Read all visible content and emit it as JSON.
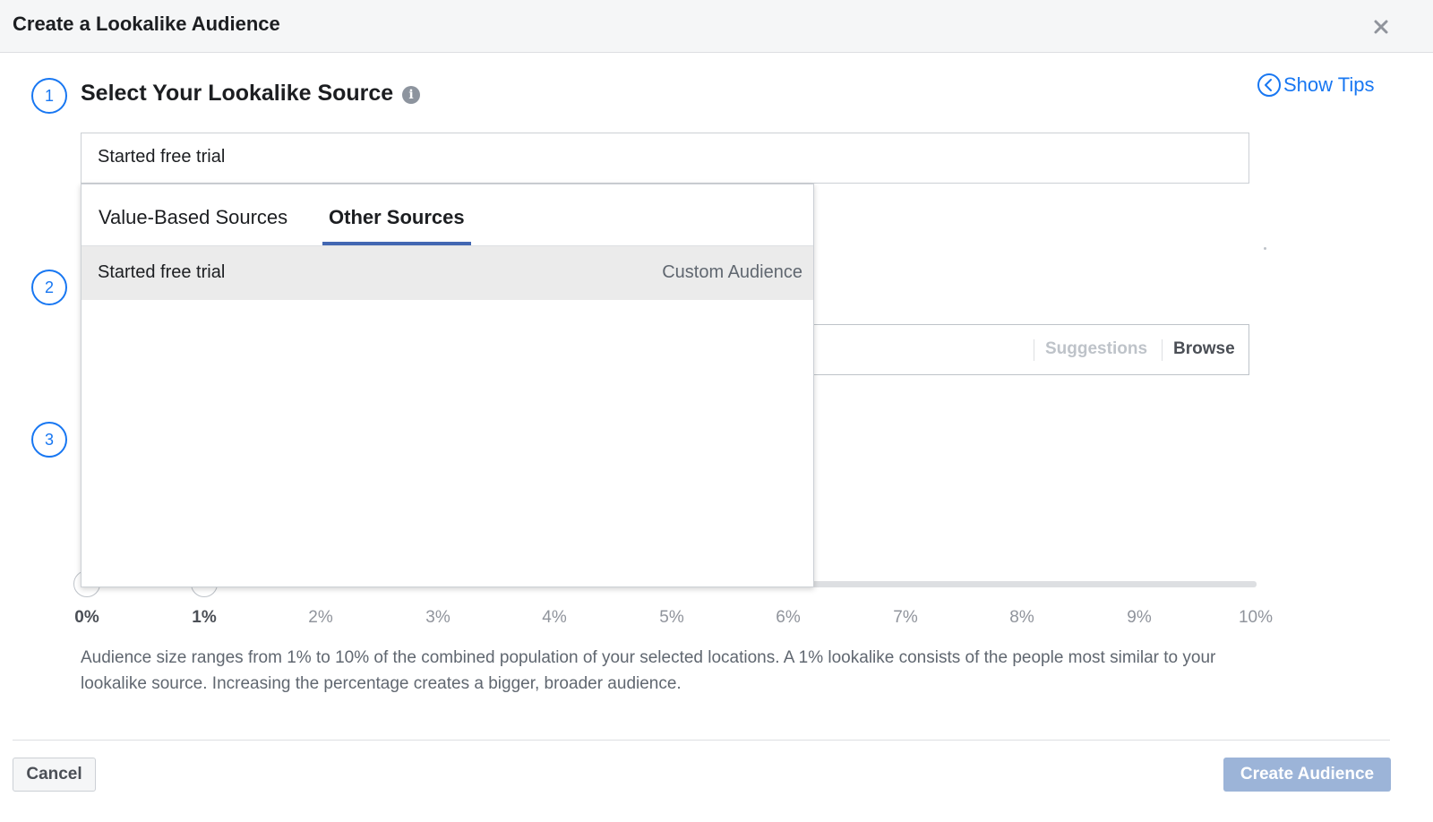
{
  "dialog": {
    "title": "Create a Lookalike Audience"
  },
  "steps": [
    "1",
    "2",
    "3"
  ],
  "source_section": {
    "title": "Select Your Lookalike Source",
    "show_tips_label": "Show Tips",
    "input_value": "Started free trial"
  },
  "dropdown": {
    "tabs": [
      {
        "label": "Value-Based Sources",
        "active": false
      },
      {
        "label": "Other Sources",
        "active": true
      }
    ],
    "items": [
      {
        "name": "Started free trial",
        "type": "Custom Audience"
      }
    ]
  },
  "location": {
    "suggestions_label": "Suggestions",
    "browse_label": "Browse"
  },
  "audience_size": {
    "ticks": [
      "0%",
      "1%",
      "2%",
      "3%",
      "4%",
      "5%",
      "6%",
      "7%",
      "8%",
      "9%",
      "10%"
    ],
    "selected_range": [
      "0%",
      "1%"
    ],
    "description": "Audience size ranges from 1% to 10% of the combined population of your selected locations. A 1% lookalike consists of the people most similar to your lookalike source. Increasing the percentage creates a bigger, broader audience."
  },
  "footer": {
    "cancel_label": "Cancel",
    "create_label": "Create Audience"
  },
  "colors": {
    "accent": "#1877f2",
    "tab_underline": "#4267b2",
    "create_disabled": "#9cb4d8"
  }
}
